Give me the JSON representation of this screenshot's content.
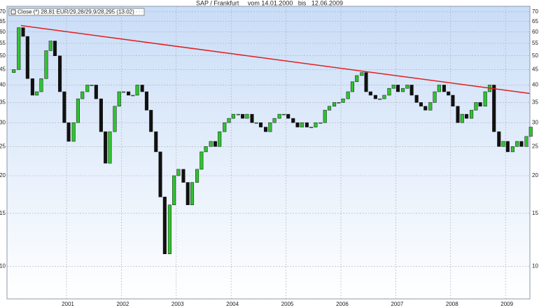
{
  "chart_data": {
    "type": "candlestick",
    "title": "SAP / Frankfurt     vom 14.01.2000   bis   12.06.2009",
    "legend": "Close (*) 28,81 EUR/29,28/29,9/28,295 (13.02)",
    "log_scale": true,
    "grid": true,
    "up_color": "#2fc42f",
    "down_color": "#111111",
    "x": [
      2000.04,
      2000.13,
      2000.21,
      2000.29,
      2000.38,
      2000.46,
      2000.54,
      2000.63,
      2000.71,
      2000.79,
      2000.88,
      2000.96,
      2001.04,
      2001.13,
      2001.21,
      2001.29,
      2001.38,
      2001.46,
      2001.54,
      2001.63,
      2001.71,
      2001.79,
      2001.88,
      2001.96,
      2002.04,
      2002.13,
      2002.21,
      2002.29,
      2002.38,
      2002.46,
      2002.54,
      2002.63,
      2002.71,
      2002.79,
      2002.88,
      2002.96,
      2003.04,
      2003.13,
      2003.21,
      2003.29,
      2003.38,
      2003.46,
      2003.54,
      2003.63,
      2003.71,
      2003.79,
      2003.88,
      2003.96,
      2004.04,
      2004.13,
      2004.21,
      2004.29,
      2004.38,
      2004.46,
      2004.54,
      2004.63,
      2004.71,
      2004.79,
      2004.88,
      2004.96,
      2005.04,
      2005.13,
      2005.21,
      2005.29,
      2005.38,
      2005.46,
      2005.54,
      2005.63,
      2005.71,
      2005.79,
      2005.88,
      2005.96,
      2006.04,
      2006.13,
      2006.21,
      2006.29,
      2006.38,
      2006.46,
      2006.54,
      2006.63,
      2006.71,
      2006.79,
      2006.88,
      2006.96,
      2007.04,
      2007.13,
      2007.21,
      2007.29,
      2007.38,
      2007.46,
      2007.54,
      2007.63,
      2007.71,
      2007.79,
      2007.88,
      2007.96,
      2008.04,
      2008.13,
      2008.21,
      2008.29,
      2008.38,
      2008.46,
      2008.54,
      2008.63,
      2008.71,
      2008.79,
      2008.88,
      2008.96,
      2009.04,
      2009.13,
      2009.21,
      2009.29,
      2009.38,
      2009.46
    ],
    "open": [
      44,
      45,
      62,
      58,
      42,
      37,
      38,
      42,
      52,
      56,
      50,
      38,
      30,
      26,
      30,
      36,
      38,
      40,
      40,
      36,
      28,
      22,
      28,
      34,
      38,
      38,
      37,
      37,
      40,
      38,
      33,
      28,
      24,
      17,
      11,
      16,
      20,
      21,
      19,
      16,
      19,
      21,
      24,
      25,
      26,
      25,
      28,
      30,
      31,
      32,
      32,
      31,
      32,
      30,
      30,
      29,
      28,
      30,
      31,
      32,
      32,
      31,
      30,
      29,
      30,
      29,
      29,
      30,
      30,
      33,
      34,
      35,
      35,
      36,
      38,
      41,
      43,
      44,
      38,
      37,
      36,
      36,
      37,
      39,
      40,
      38,
      39,
      40,
      37,
      35,
      34,
      33,
      35,
      38,
      40,
      38,
      37,
      34,
      30,
      32,
      31,
      33,
      35,
      34,
      38,
      40,
      28,
      25,
      26,
      24,
      25,
      26,
      25,
      27
    ],
    "close": [
      45,
      62,
      58,
      42,
      37,
      38,
      42,
      52,
      56,
      50,
      38,
      30,
      26,
      30,
      36,
      38,
      40,
      40,
      36,
      28,
      22,
      28,
      34,
      38,
      38,
      37,
      37,
      40,
      38,
      33,
      28,
      24,
      17,
      11,
      16,
      20,
      21,
      19,
      16,
      19,
      21,
      24,
      25,
      26,
      25,
      28,
      30,
      31,
      32,
      32,
      31,
      32,
      30,
      30,
      29,
      28,
      30,
      31,
      32,
      32,
      31,
      30,
      29,
      30,
      29,
      29,
      30,
      30,
      33,
      34,
      35,
      35,
      36,
      38,
      41,
      43,
      44,
      38,
      37,
      36,
      36,
      37,
      39,
      40,
      38,
      39,
      40,
      37,
      35,
      34,
      33,
      35,
      38,
      40,
      38,
      37,
      34,
      30,
      32,
      31,
      33,
      35,
      34,
      38,
      40,
      28,
      25,
      26,
      24,
      25,
      26,
      25,
      27,
      29
    ],
    "trendline": {
      "x": [
        2000.17,
        2009.44
      ],
      "values": [
        63,
        37.5
      ],
      "color": "#e02020"
    },
    "xlim": [
      1999.916,
      2009.444
    ],
    "xticks": [
      2001,
      2002,
      2003,
      2004,
      2005,
      2006,
      2007,
      2008,
      2009
    ],
    "ylim": [
      7.8,
      73
    ],
    "yticks": [
      10,
      15,
      20,
      25,
      30,
      35,
      40,
      45,
      50,
      55,
      60,
      65,
      70
    ]
  }
}
